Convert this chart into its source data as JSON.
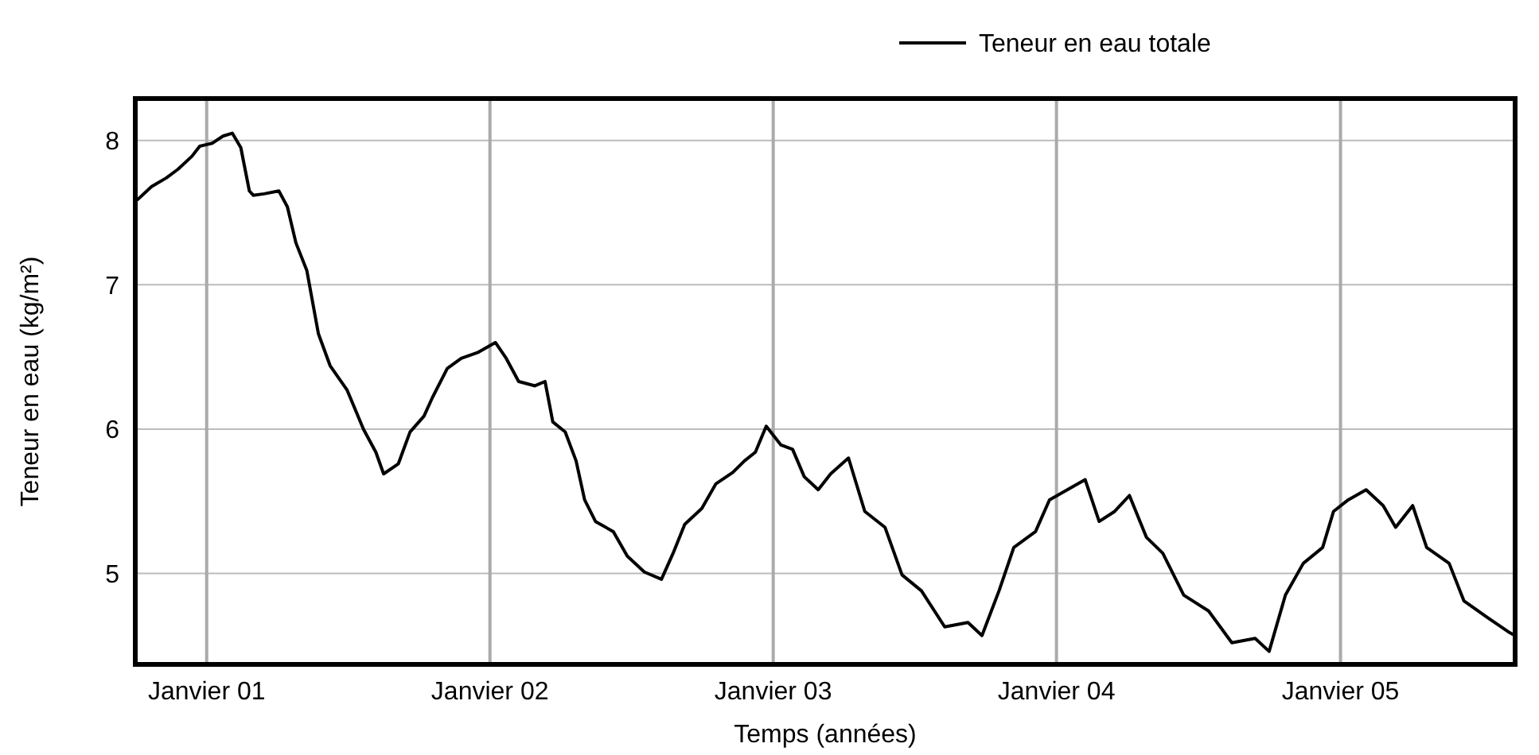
{
  "chart_data": {
    "type": "line",
    "xlabel": "Temps (années)",
    "ylabel": "Teneur en eau (kg/m²)",
    "xlim": [
      "2000-10-01",
      "2005-08-14"
    ],
    "ylim": [
      4.37,
      8.29
    ],
    "xticks": [
      {
        "value": "2001-01-01",
        "label": "Janvier 01"
      },
      {
        "value": "2002-01-01",
        "label": "Janvier 02"
      },
      {
        "value": "2003-01-01",
        "label": "Janvier 03"
      },
      {
        "value": "2004-01-01",
        "label": "Janvier 04"
      },
      {
        "value": "2005-01-01",
        "label": "Janvier 05"
      }
    ],
    "yticks": [
      5,
      6,
      7,
      8
    ],
    "grid": true,
    "legend": "top right",
    "line_style": "solid",
    "series": [
      {
        "name": "Teneur en eau totale",
        "color": "#000000",
        "x": [
          "2000-10-04",
          "2000-10-22",
          "2000-11-10",
          "2000-11-25",
          "2000-12-13",
          "2000-12-23",
          "2001-01-08",
          "2001-01-22",
          "2001-02-03",
          "2001-02-14",
          "2001-02-25",
          "2001-03-02",
          "2001-03-16",
          "2001-04-04",
          "2001-04-15",
          "2001-04-26",
          "2001-05-10",
          "2001-05-25",
          "2001-06-09",
          "2001-07-01",
          "2001-07-22",
          "2001-08-07",
          "2001-08-17",
          "2001-09-05",
          "2001-09-20",
          "2001-10-08",
          "2001-10-19",
          "2001-11-07",
          "2001-11-25",
          "2001-12-16",
          "2002-01-08",
          "2002-01-22",
          "2002-02-07",
          "2002-02-28",
          "2002-03-13",
          "2002-03-23",
          "2002-04-08",
          "2002-04-22",
          "2002-05-03",
          "2002-05-17",
          "2002-06-09",
          "2002-06-27",
          "2002-07-19",
          "2002-08-10",
          "2002-08-25",
          "2002-09-09",
          "2002-10-01",
          "2002-10-19",
          "2002-11-10",
          "2002-11-25",
          "2002-12-09",
          "2002-12-23",
          "2003-01-11",
          "2003-01-26",
          "2003-02-10",
          "2003-02-28",
          "2003-03-16",
          "2003-04-08",
          "2003-04-29",
          "2003-05-25",
          "2003-06-16",
          "2003-07-11",
          "2003-08-10",
          "2003-09-09",
          "2003-09-27",
          "2003-10-19",
          "2003-11-07",
          "2003-12-05",
          "2003-12-23",
          "2004-01-15",
          "2004-02-07",
          "2004-02-25",
          "2004-03-16",
          "2004-04-04",
          "2004-04-26",
          "2004-05-17",
          "2004-06-13",
          "2004-07-15",
          "2004-08-14",
          "2004-09-13",
          "2004-10-01",
          "2004-10-22",
          "2004-11-14",
          "2004-12-09",
          "2004-12-23",
          "2005-01-11",
          "2005-02-03",
          "2005-02-25",
          "2005-03-13",
          "2005-04-04",
          "2005-04-22",
          "2005-05-21",
          "2005-06-09",
          "2005-07-08",
          "2005-08-07",
          "2005-08-14"
        ],
        "values": [
          7.59,
          7.68,
          7.74,
          7.8,
          7.89,
          7.96,
          7.98,
          8.03,
          8.05,
          7.95,
          7.65,
          7.62,
          7.63,
          7.65,
          7.54,
          7.29,
          7.1,
          6.66,
          6.44,
          6.27,
          6.0,
          5.84,
          5.69,
          5.76,
          5.98,
          6.09,
          6.22,
          6.42,
          6.49,
          6.53,
          6.6,
          6.49,
          6.33,
          6.3,
          6.33,
          6.05,
          5.98,
          5.78,
          5.51,
          5.36,
          5.29,
          5.12,
          5.01,
          4.96,
          5.14,
          5.34,
          5.45,
          5.62,
          5.7,
          5.78,
          5.84,
          6.02,
          5.89,
          5.86,
          5.67,
          5.58,
          5.69,
          5.8,
          5.43,
          5.32,
          4.99,
          4.88,
          4.63,
          4.66,
          4.57,
          4.88,
          5.18,
          5.29,
          5.51,
          5.58,
          5.65,
          5.36,
          5.43,
          5.54,
          5.25,
          5.14,
          4.85,
          4.74,
          4.52,
          4.55,
          4.46,
          4.85,
          5.07,
          5.18,
          5.43,
          5.51,
          5.58,
          5.47,
          5.32,
          5.47,
          5.18,
          5.07,
          4.81,
          4.7,
          4.59,
          4.57
        ]
      }
    ]
  }
}
